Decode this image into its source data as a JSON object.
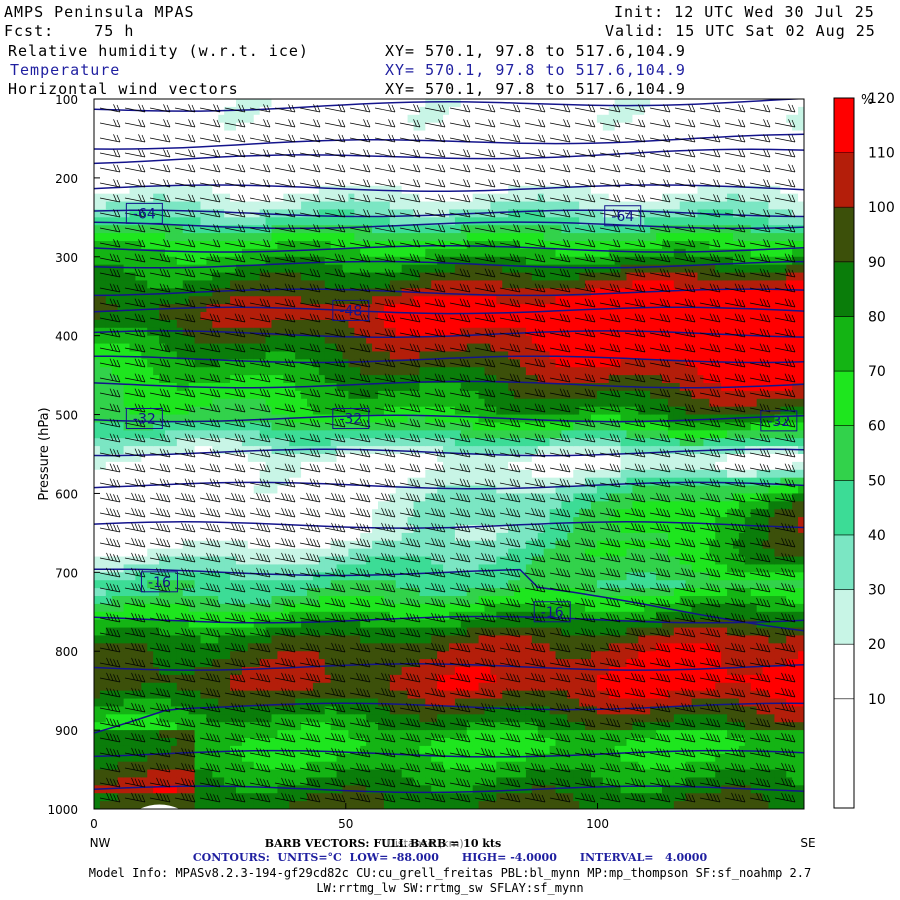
{
  "header": {
    "model": "AMPS Peninsula MPAS",
    "fcst": "Fcst:    75 h",
    "init": "Init: 12 UTC Wed 30 Jul 25",
    "valid": "Valid: 15 UTC Sat 02 Aug 25",
    "fields": [
      {
        "name": "Relative humidity (w.r.t. ice)",
        "xy": "XY= 570.1, 97.8 to 517.6,104.9"
      },
      {
        "name": "Temperature",
        "xy": "XY= 570.1, 97.8 to 517.6,104.9"
      },
      {
        "name": "Horizontal wind vectors",
        "xy": "XY= 570.1, 97.8 to 517.6,104.9"
      }
    ]
  },
  "chart_data": {
    "type": "heatmap",
    "subtype": "vertical cross-section (filled RH contours + temperature isolines + wind barbs)",
    "ylabel": "Pressure (hPa)",
    "xlabel": "Distance (km)",
    "xlim": [
      0,
      141
    ],
    "ylim": [
      1000,
      100
    ],
    "x_ticks": [
      0,
      50,
      100
    ],
    "y_ticks": [
      100,
      200,
      300,
      400,
      500,
      600,
      700,
      800,
      900,
      1000
    ],
    "x_end_labels": {
      "left": "NW",
      "right": "SE"
    },
    "colorbar": {
      "unit": "%",
      "levels": [
        0,
        10,
        20,
        30,
        40,
        50,
        60,
        70,
        80,
        90,
        100,
        110,
        120,
        130
      ],
      "tick_labels": [
        "10",
        "20",
        "30",
        "40",
        "50",
        "60",
        "70",
        "80",
        "90",
        "100",
        "110",
        "120"
      ],
      "colors": [
        "#ffffff",
        "#ffffff",
        "#ffffff",
        "#c8f5e6",
        "#7be6c3",
        "#3cdc96",
        "#32d24b",
        "#1ee61e",
        "#14b414",
        "#0a7d0a",
        "#3c500a",
        "#b41e0a",
        "#ff0000"
      ]
    },
    "rh_profile": [
      {
        "p": 130,
        "rh": 25
      },
      {
        "p": 190,
        "rh": 15
      },
      {
        "p": 245,
        "rh": 45
      },
      {
        "p": 290,
        "rh": 80
      },
      {
        "p": 370,
        "rh": 125
      },
      {
        "p": 500,
        "rh": 80
      },
      {
        "p": 560,
        "rh": 25
      },
      {
        "p": 650,
        "rh": 15
      },
      {
        "p": 730,
        "rh": 65
      },
      {
        "p": 790,
        "rh": 105
      },
      {
        "p": 840,
        "rh": 115
      },
      {
        "p": 920,
        "rh": 75
      },
      {
        "p": 990,
        "rh": 100
      }
    ],
    "temperature_contours": {
      "units": "°C",
      "low": -88.0,
      "high": -4.0,
      "interval": 4.0,
      "labels": [
        {
          "value": -64,
          "x": 10,
          "p": 245
        },
        {
          "value": -64,
          "x": 105,
          "p": 248
        },
        {
          "value": -48,
          "x": 51,
          "p": 368
        },
        {
          "value": -32,
          "x": 10,
          "p": 505
        },
        {
          "value": -32,
          "x": 51,
          "p": 505
        },
        {
          "value": -32,
          "x": 136,
          "p": 508
        },
        {
          "value": -16,
          "x": 13,
          "p": 712
        },
        {
          "value": -16,
          "x": 91,
          "p": 750
        }
      ]
    },
    "wind": {
      "label": "BARB VECTORS: FULL BARB = 10 kts"
    }
  },
  "footer": {
    "contours": "CONTOURS:  UNITS=°C  LOW= -88.000      HIGH= -4.0000      INTERVAL=   4.0000",
    "model_info": "Model Info: MPASv8.2.3-194-gf29cd82c CU:cu_grell_freitas PBL:bl_mynn MP:mp_thompson SF:sf_noahmp 2.7",
    "model_info_2": "LW:rrtmg_lw SW:rrtmg_sw SFLAY:sf_mynn"
  }
}
